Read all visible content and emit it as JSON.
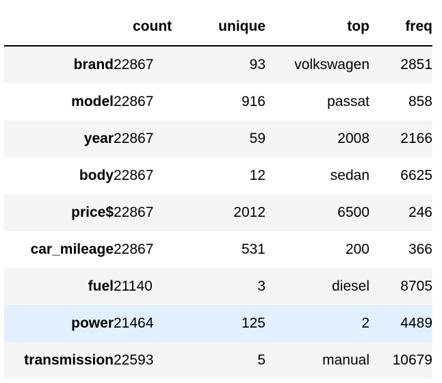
{
  "table": {
    "headers": {
      "index": "",
      "count": "count",
      "unique": "unique",
      "top": "top",
      "freq": "freq"
    },
    "rows": [
      {
        "name": "brand",
        "count": "22867",
        "unique": "93",
        "top": "volkswagen",
        "freq": "2851"
      },
      {
        "name": "model",
        "count": "22867",
        "unique": "916",
        "top": "passat",
        "freq": "858"
      },
      {
        "name": "year",
        "count": "22867",
        "unique": "59",
        "top": "2008",
        "freq": "2166"
      },
      {
        "name": "body",
        "count": "22867",
        "unique": "12",
        "top": "sedan",
        "freq": "6625"
      },
      {
        "name": "price$",
        "count": "22867",
        "unique": "2012",
        "top": "6500",
        "freq": "246"
      },
      {
        "name": "car_mileage",
        "count": "22867",
        "unique": "531",
        "top": "200",
        "freq": "366"
      },
      {
        "name": "fuel",
        "count": "21140",
        "unique": "3",
        "top": "diesel",
        "freq": "8705"
      },
      {
        "name": "power",
        "count": "21464",
        "unique": "125",
        "top": "2",
        "freq": "4489"
      },
      {
        "name": "transmission",
        "count": "22593",
        "unique": "5",
        "top": "manual",
        "freq": "10679"
      }
    ],
    "highlighted_row": "power",
    "colors": {
      "stripe": "#f5f5f5",
      "hover": "#e1efff",
      "header_rule": "#000000"
    }
  }
}
